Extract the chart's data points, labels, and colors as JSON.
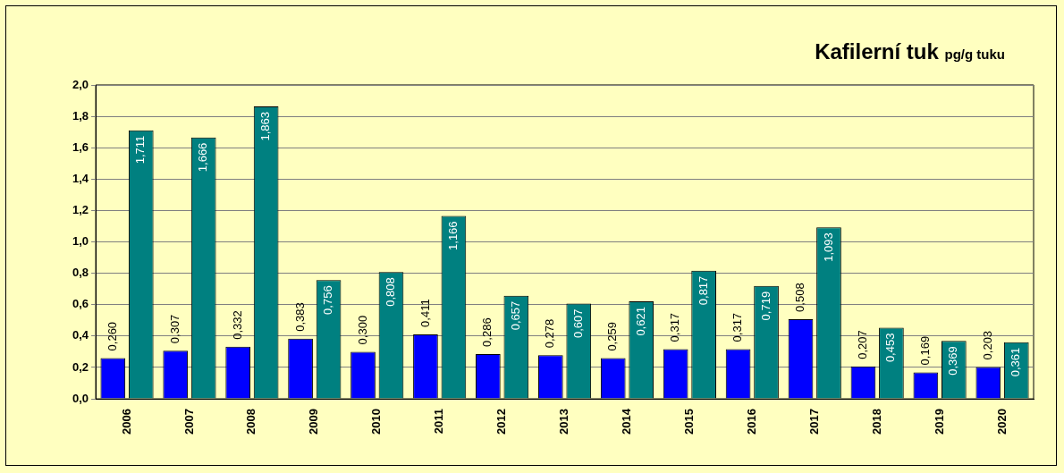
{
  "chart_data": {
    "type": "bar",
    "title": "Kafilerní tuk",
    "subtitle": "pg/g tuku",
    "categories": [
      "2006",
      "2007",
      "2008",
      "2009",
      "2010",
      "2011",
      "2012",
      "2013",
      "2014",
      "2015",
      "2016",
      "2017",
      "2018",
      "2019",
      "2020"
    ],
    "series": [
      {
        "color": "#0000ff",
        "values": [
          0.26,
          0.307,
          0.332,
          0.383,
          0.3,
          0.411,
          0.286,
          0.278,
          0.259,
          0.317,
          0.317,
          0.508,
          0.207,
          0.169,
          0.203
        ],
        "value_labels": [
          "0,260",
          "0,307",
          "0,332",
          "0,383",
          "0,300",
          "0,411",
          "0,286",
          "0,278",
          "0,259",
          "0,317",
          "0,317",
          "0,508",
          "0,207",
          "0,169",
          "0,203"
        ]
      },
      {
        "color": "#008080",
        "values": [
          1.711,
          1.666,
          1.863,
          0.756,
          0.808,
          1.166,
          0.657,
          0.607,
          0.621,
          0.817,
          0.719,
          1.093,
          0.453,
          0.369,
          0.361
        ],
        "value_labels": [
          "1,711",
          "1,666",
          "1,863",
          "0,756",
          "0,808",
          "1,166",
          "0,657",
          "0,607",
          "0,621",
          "0,817",
          "0,719",
          "1,093",
          "0,453",
          "0,369",
          "0,361"
        ]
      }
    ],
    "ylim": [
      0,
      2
    ],
    "yticks": [
      {
        "value": 0,
        "label": "0,0"
      },
      {
        "value": 0.2,
        "label": "0,2"
      },
      {
        "value": 0.4,
        "label": "0,4"
      },
      {
        "value": 0.6,
        "label": "0,6"
      },
      {
        "value": 0.8,
        "label": "0,8"
      },
      {
        "value": 1,
        "label": "1,0"
      },
      {
        "value": 1.2,
        "label": "1,2"
      },
      {
        "value": 1.4,
        "label": "1,4"
      },
      {
        "value": 1.6,
        "label": "1,6"
      },
      {
        "value": 1.8,
        "label": "1,8"
      },
      {
        "value": 2,
        "label": "2,0"
      }
    ],
    "grid": "y",
    "legend": false
  }
}
